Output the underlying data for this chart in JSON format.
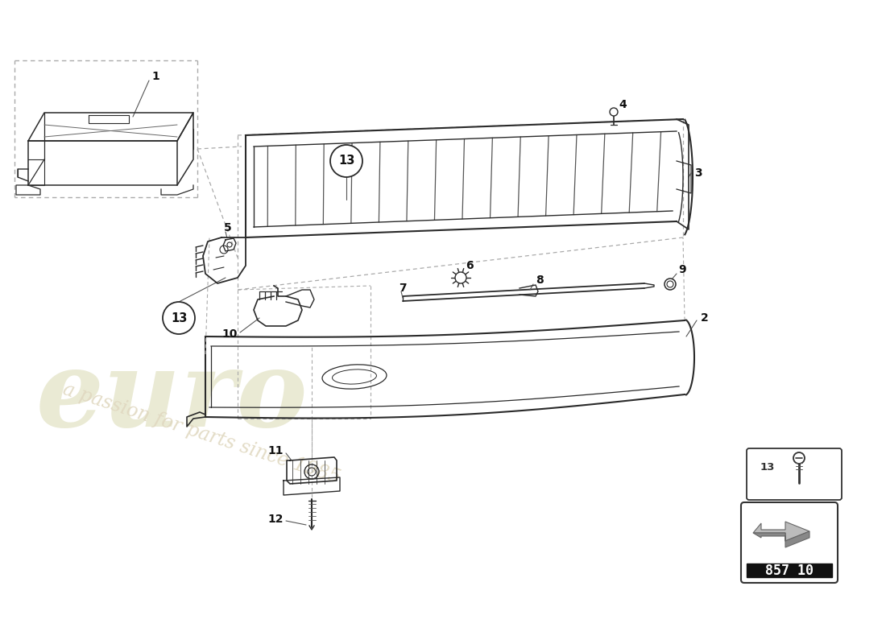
{
  "bg_color": "#ffffff",
  "line_color": "#2a2a2a",
  "thin_line": "#444444",
  "dashed_color": "#aaaaaa",
  "watermark_euro_color": "#e8e8d0",
  "watermark_text_color": "#e0d8c0",
  "part_number": "857 10"
}
